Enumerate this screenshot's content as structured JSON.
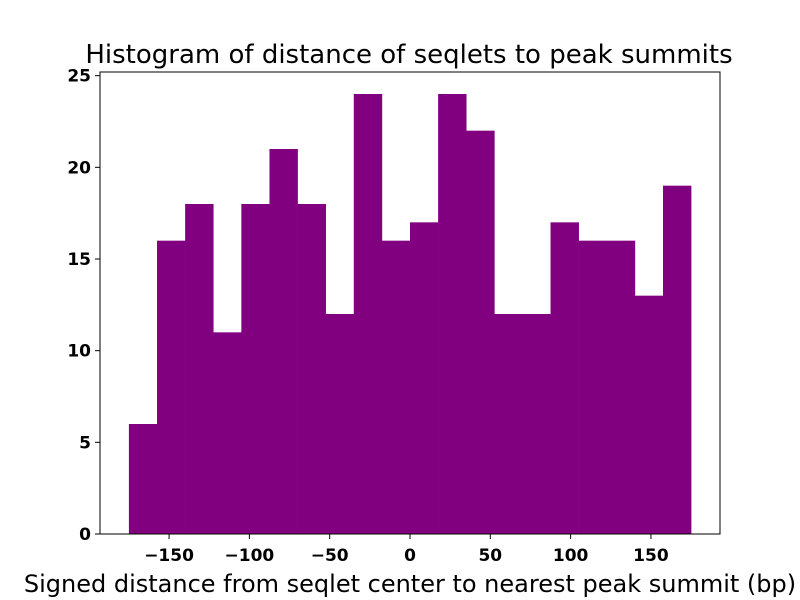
{
  "chart_data": {
    "type": "bar",
    "subtype": "histogram",
    "title": "Histogram of distance of seqlets to peak summits",
    "xlabel": "Signed distance from seqlet center to nearest peak summit (bp)",
    "ylabel": "",
    "bin_edges": [
      -175,
      -157.5,
      -140,
      -122.5,
      -105,
      -87.5,
      -70,
      -52.5,
      -35,
      -17.5,
      0,
      17.5,
      35,
      52.5,
      70,
      87.5,
      105,
      122.5,
      140,
      157.5,
      175
    ],
    "values": [
      6,
      16,
      18,
      11,
      18,
      21,
      18,
      12,
      24,
      16,
      17,
      24,
      22,
      12,
      12,
      17,
      16,
      16,
      13,
      19
    ],
    "xlim": [
      -193,
      193
    ],
    "ylim": [
      0,
      25.2
    ],
    "xticks": [
      -150,
      -100,
      -50,
      0,
      50,
      100,
      150
    ],
    "xtick_labels": [
      "−150",
      "−100",
      "−50",
      "0",
      "50",
      "100",
      "150"
    ],
    "yticks": [
      0,
      5,
      10,
      15,
      20,
      25
    ],
    "ytick_labels": [
      "0",
      "5",
      "10",
      "15",
      "20",
      "25"
    ],
    "bar_color": "#800080",
    "grid": false,
    "legend": "none"
  }
}
